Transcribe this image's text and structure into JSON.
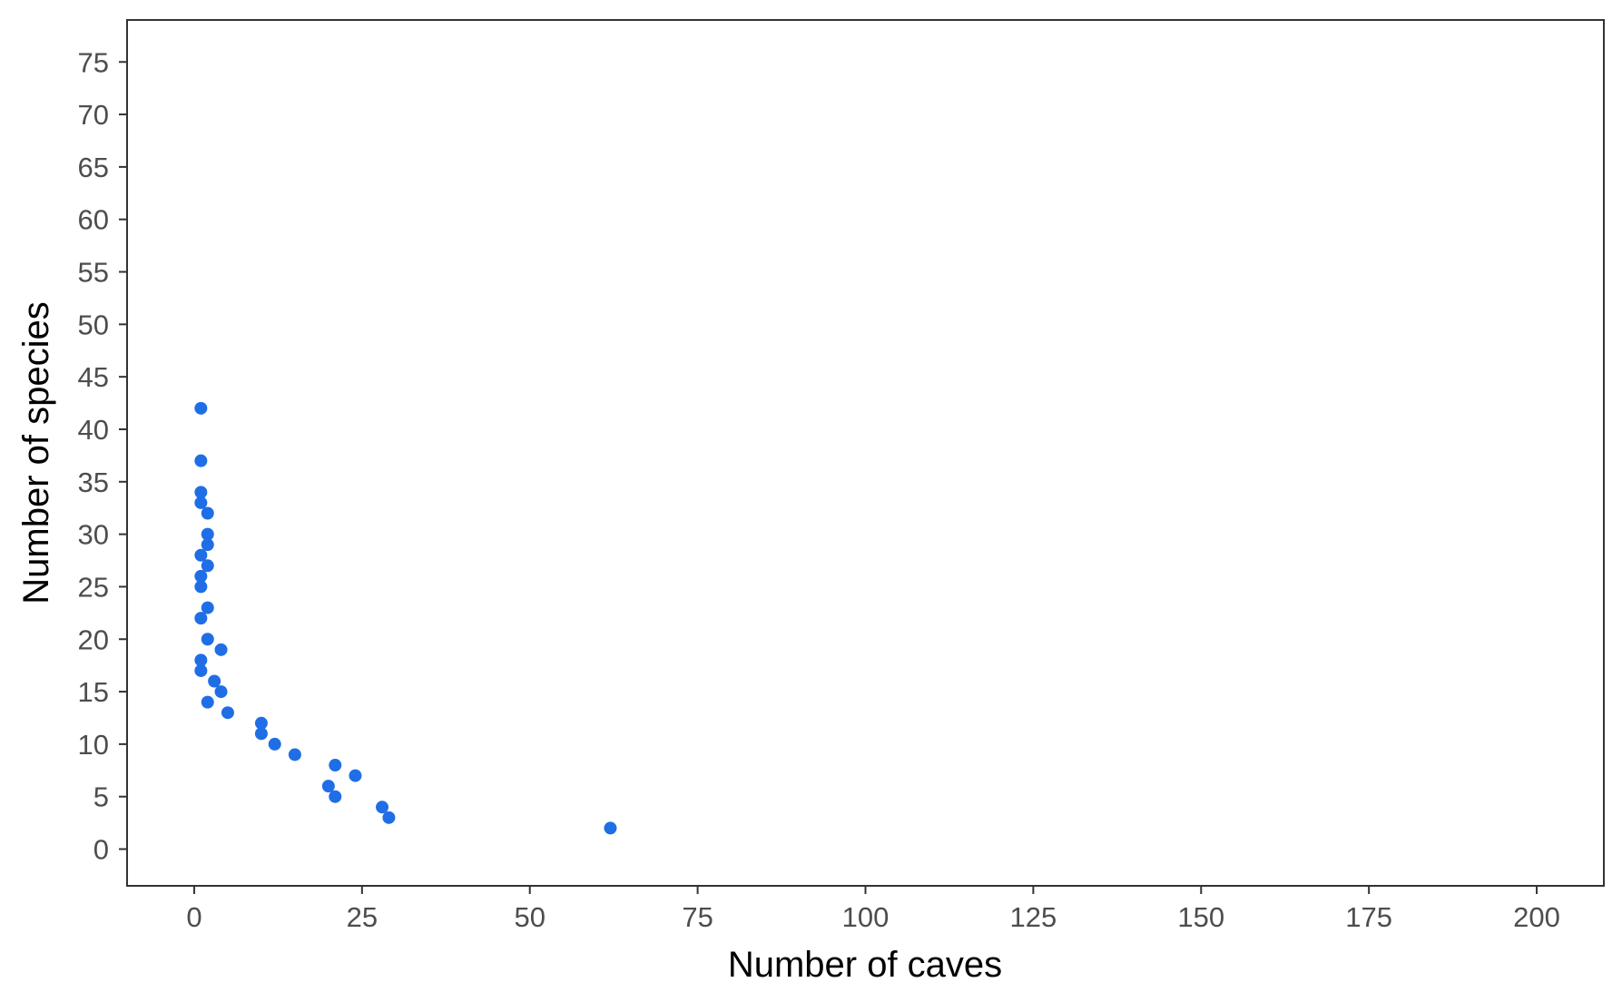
{
  "chart_data": {
    "type": "scatter",
    "title": "",
    "xlabel": "Number of caves",
    "ylabel": "Number of species",
    "xlim": [
      -10,
      210
    ],
    "ylim": [
      -3.5,
      79
    ],
    "x_ticks": [
      0,
      25,
      50,
      75,
      100,
      125,
      150,
      175,
      200
    ],
    "x_tick_labels": [
      "0",
      "25",
      "50",
      "75",
      "100",
      "125",
      "150",
      "175",
      "200"
    ],
    "y_ticks": [
      0,
      5,
      10,
      15,
      20,
      25,
      30,
      35,
      40,
      45,
      50,
      55,
      60,
      65,
      70,
      75
    ],
    "y_tick_labels": [
      "0",
      "5",
      "10",
      "15",
      "20",
      "25",
      "30",
      "35",
      "40",
      "45",
      "50",
      "55",
      "60",
      "65",
      "70",
      "75"
    ],
    "grid": false,
    "legend": "none",
    "point_color": "#1f6ee5",
    "points": [
      {
        "x": 1,
        "y": 42
      },
      {
        "x": 1,
        "y": 37
      },
      {
        "x": 1,
        "y": 34
      },
      {
        "x": 1,
        "y": 33
      },
      {
        "x": 2,
        "y": 32
      },
      {
        "x": 2,
        "y": 30
      },
      {
        "x": 2,
        "y": 29
      },
      {
        "x": 1,
        "y": 28
      },
      {
        "x": 2,
        "y": 27
      },
      {
        "x": 1,
        "y": 26
      },
      {
        "x": 1,
        "y": 25
      },
      {
        "x": 2,
        "y": 23
      },
      {
        "x": 1,
        "y": 22
      },
      {
        "x": 2,
        "y": 20
      },
      {
        "x": 4,
        "y": 19
      },
      {
        "x": 1,
        "y": 18
      },
      {
        "x": 1,
        "y": 17
      },
      {
        "x": 3,
        "y": 16
      },
      {
        "x": 4,
        "y": 15
      },
      {
        "x": 2,
        "y": 14
      },
      {
        "x": 5,
        "y": 13
      },
      {
        "x": 10,
        "y": 12
      },
      {
        "x": 10,
        "y": 11
      },
      {
        "x": 12,
        "y": 10
      },
      {
        "x": 15,
        "y": 9
      },
      {
        "x": 21,
        "y": 8
      },
      {
        "x": 24,
        "y": 7
      },
      {
        "x": 20,
        "y": 6
      },
      {
        "x": 21,
        "y": 5
      },
      {
        "x": 28,
        "y": 4
      },
      {
        "x": 29,
        "y": 3
      },
      {
        "x": 62,
        "y": 2
      }
    ]
  }
}
